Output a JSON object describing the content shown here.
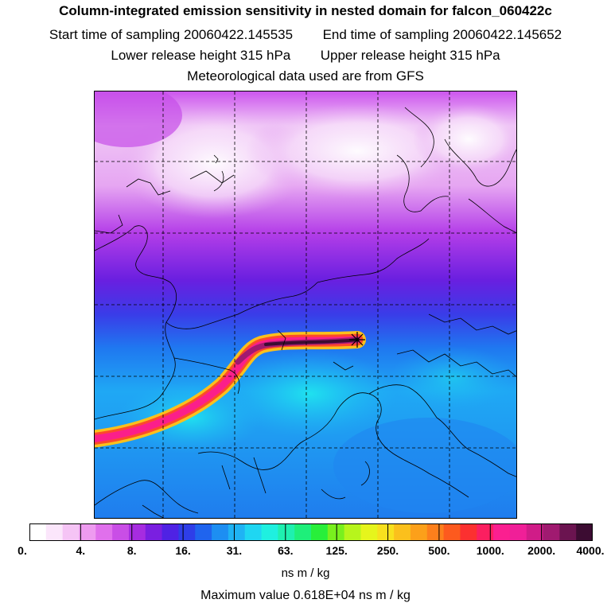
{
  "header": {
    "title": "Column-integrated emission sensitivity in nested domain for falcon_060422c",
    "start_label": "Start time of sampling",
    "start_value": "20060422.145535",
    "end_label": "End time of sampling",
    "end_value": "20060422.145652",
    "lower_label": "Lower release height",
    "lower_value": "315 hPa",
    "upper_label": "Upper release height",
    "upper_value": "315 hPa",
    "met_text": "Meteorological data used are from GFS"
  },
  "colorbar": {
    "labels": [
      "0.",
      "4.",
      "8.",
      "16.",
      "31.",
      "63.",
      "125.",
      "250.",
      "500.",
      "1000.",
      "2000.",
      "4000."
    ],
    "colors": [
      "#ffffff",
      "#fbe6fb",
      "#f5c4f5",
      "#ee9bf0",
      "#e070ec",
      "#c94ee6",
      "#a62ce0",
      "#7a1fe0",
      "#4f22e4",
      "#2e3ee8",
      "#1f64ee",
      "#1d8ef2",
      "#1fb3f4",
      "#1fd6f2",
      "#1ff0e0",
      "#1ff0b0",
      "#1eef7a",
      "#28ef3a",
      "#79f01e",
      "#b7f51c",
      "#e6f51c",
      "#f8e01e",
      "#fbc01c",
      "#fca01a",
      "#fd7f1c",
      "#fd5a1e",
      "#fc3030",
      "#fb1f60",
      "#fb1f90",
      "#f01f98",
      "#d01c88",
      "#a01a70",
      "#6b1450",
      "#3c0c32"
    ],
    "unit": "ns m / kg"
  },
  "footer": {
    "max_label": "Maximum value",
    "max_value": "0.618E+04",
    "max_unit": "ns m / kg"
  }
}
